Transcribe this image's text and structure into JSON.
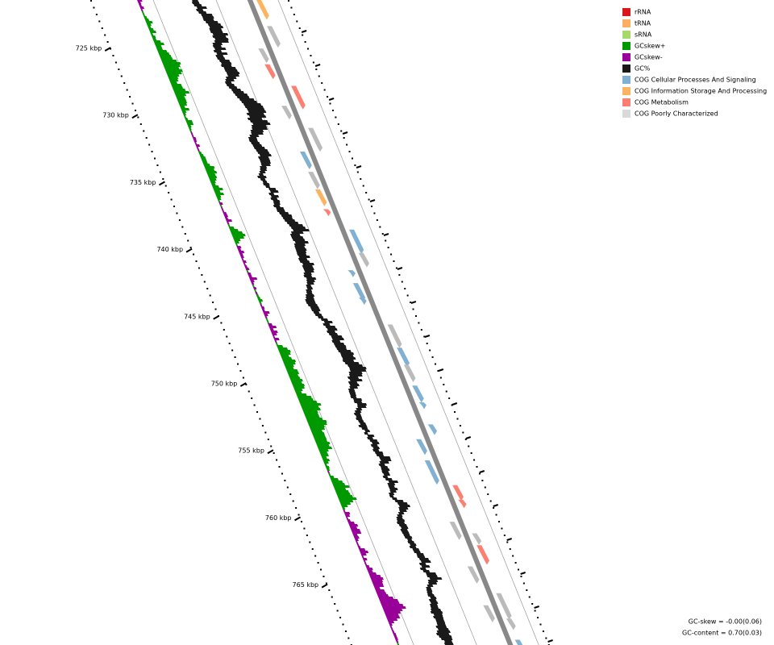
{
  "legend": [
    {
      "label": "rRNA",
      "color": "#d7191c"
    },
    {
      "label": "tRNA",
      "color": "#fdae61"
    },
    {
      "label": "sRNA",
      "color": "#a6d96a"
    },
    {
      "label": "GCskew+",
      "color": "#009900"
    },
    {
      "label": "GCskew-",
      "color": "#990099"
    },
    {
      "label": "GC%",
      "color": "#1a1a1a"
    },
    {
      "label": "COG Cellular Processes And Signaling",
      "color": "#80b1d3"
    },
    {
      "label": "COG Information Storage And Processing",
      "color": "#fdb462"
    },
    {
      "label": "COG Metabolism",
      "color": "#fb8072"
    },
    {
      "label": "COG Poorly Characterized",
      "color": "#d9d9d9"
    }
  ],
  "ruler_labels": [
    "725 kbp",
    "730 kbp",
    "735 kbp",
    "740 kbp",
    "745 kbp",
    "750 kbp",
    "755 kbp",
    "760 kbp",
    "765 kbp"
  ],
  "stats": [
    "GC-skew = -0.00(0.06)",
    "GC-content = 0.70(0.03)"
  ]
}
